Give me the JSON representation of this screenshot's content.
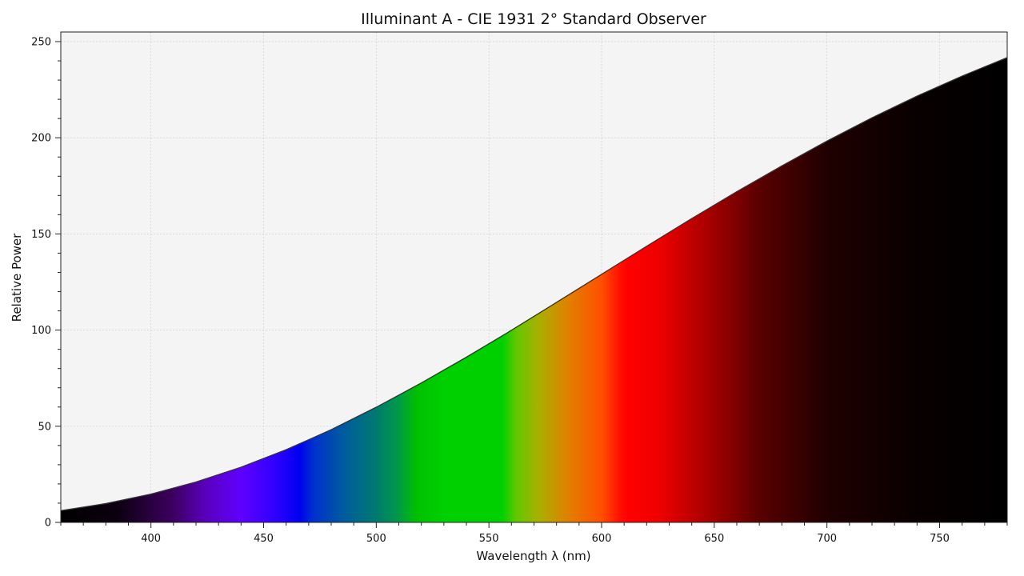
{
  "chart_data": {
    "type": "area",
    "title": "Illuminant A - CIE 1931 2$^\\circ$ Standard Observer",
    "title_text": "Illuminant A - CIE 1931 2° Standard Observer",
    "xlabel": "Wavelength λ (nm)",
    "ylabel": "Relative Power",
    "xlim": [
      360,
      780
    ],
    "ylim": [
      0,
      255
    ],
    "x_ticks": [
      400,
      450,
      500,
      550,
      600,
      650,
      700,
      750
    ],
    "y_ticks": [
      0,
      50,
      100,
      150,
      200,
      250
    ],
    "grid": true,
    "fill": "visible spectrum colours",
    "series": [
      {
        "x": [
          360,
          380,
          400,
          420,
          440,
          460,
          480,
          500,
          520,
          540,
          560,
          580,
          600,
          620,
          640,
          660,
          680,
          700,
          720,
          740,
          760,
          780
        ],
        "values": [
          6.1,
          9.8,
          14.7,
          21.0,
          28.7,
          37.8,
          48.2,
          59.9,
          72.5,
          85.9,
          99.9,
          114.4,
          129.0,
          143.6,
          157.98,
          172.0,
          185.4,
          198.3,
          210.4,
          221.7,
          232.1,
          241.7
        ]
      }
    ]
  },
  "colors": {
    "plot_background": "#f4f4f4",
    "curve": "#333333",
    "grid": "#cfcfcf",
    "spectrum_stops": [
      {
        "nm": 360,
        "color": "#000000"
      },
      {
        "nm": 385,
        "color": "#0c0010"
      },
      {
        "nm": 410,
        "color": "#3d0060"
      },
      {
        "nm": 425,
        "color": "#5a00c0"
      },
      {
        "nm": 440,
        "color": "#5f00ff"
      },
      {
        "nm": 455,
        "color": "#3000ff"
      },
      {
        "nm": 466,
        "color": "#0000f0"
      },
      {
        "nm": 472,
        "color": "#0030d0"
      },
      {
        "nm": 485,
        "color": "#005aa0"
      },
      {
        "nm": 500,
        "color": "#007a70"
      },
      {
        "nm": 510,
        "color": "#009a48"
      },
      {
        "nm": 518,
        "color": "#00c000"
      },
      {
        "nm": 530,
        "color": "#00d000"
      },
      {
        "nm": 556,
        "color": "#00d000"
      },
      {
        "nm": 562,
        "color": "#60c800"
      },
      {
        "nm": 572,
        "color": "#a8b000"
      },
      {
        "nm": 585,
        "color": "#e08000"
      },
      {
        "nm": 600,
        "color": "#ff5000"
      },
      {
        "nm": 608,
        "color": "#ff1000"
      },
      {
        "nm": 612,
        "color": "#ff0000"
      },
      {
        "nm": 625,
        "color": "#f00000"
      },
      {
        "nm": 645,
        "color": "#b00000"
      },
      {
        "nm": 670,
        "color": "#5a0000"
      },
      {
        "nm": 700,
        "color": "#200000"
      },
      {
        "nm": 740,
        "color": "#080000"
      },
      {
        "nm": 780,
        "color": "#000000"
      }
    ]
  }
}
